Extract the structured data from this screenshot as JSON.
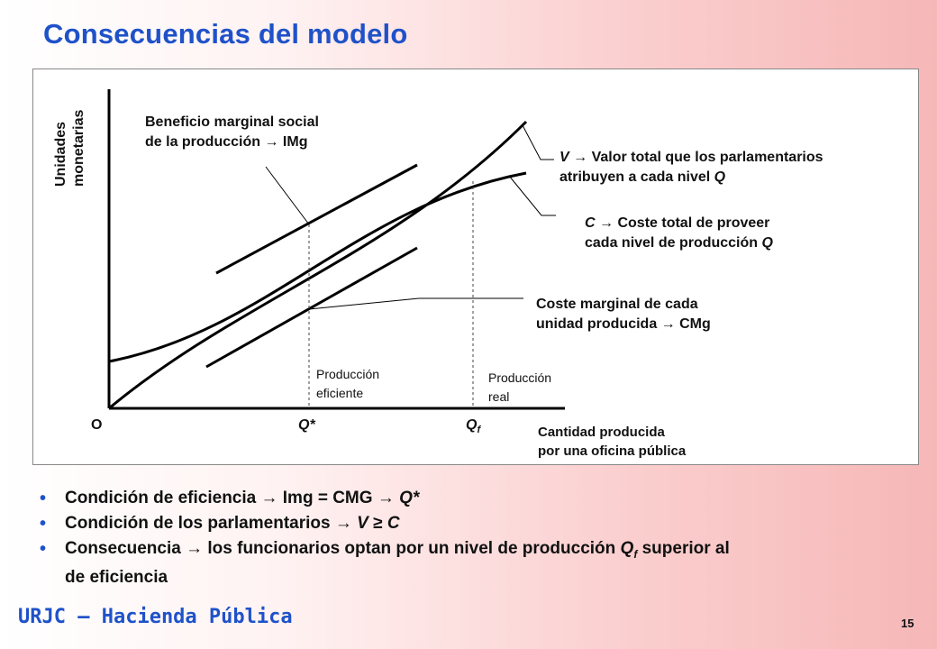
{
  "slide": {
    "title": "Consecuencias del modelo",
    "footer": "URJC – Hacienda Pública",
    "page_number": "15"
  },
  "diagram": {
    "y_axis_label_line1": "Unidades",
    "y_axis_label_line2": "monetarias",
    "x_axis_label_line1": "Cantidad producida",
    "x_axis_label_line2": "por una oficina pública",
    "origin": "O",
    "q_star": "Q*",
    "q_f_base": "Q",
    "q_f_sub": "f",
    "img_label_line1": "Beneficio marginal social",
    "img_label_line2": "de la producción",
    "img_label_suffix": "IMg",
    "v_label_prefix": "V",
    "v_label_line1": "Valor total que los parlamentarios",
    "v_label_line2": "atribuyen a cada nivel",
    "v_label_q": "Q",
    "c_label_prefix": "C",
    "c_label_line1": "Coste total de proveer",
    "c_label_line2": "cada nivel de producción",
    "c_label_q": "Q",
    "cmg_label_line1": "Coste marginal de cada",
    "cmg_label_line2": "unidad producida",
    "cmg_label_suffix": "CMg",
    "efficient_line1": "Producción",
    "efficient_line2": "eficiente",
    "real_line1": "Producción",
    "real_line2": "real",
    "arrow": "→"
  },
  "bullets": {
    "b1_text": "Condición de eficiencia",
    "b1_mid": "Img = CMG",
    "b1_end": "Q*",
    "b2_text": "Condición de los parlamentarios",
    "b2_v": "V",
    "b2_geq": "≥",
    "b2_c": "C",
    "b3_text": "Consecuencia",
    "b3_mid": "los funcionarios optan por un nivel de producción",
    "b3_q": "Q",
    "b3_sub": "f",
    "b3_tail": "superior al",
    "b3_line2": "de eficiencia",
    "bullet_glyph": "•"
  },
  "colors": {
    "accent": "#1f52c9",
    "ink": "#111111"
  }
}
